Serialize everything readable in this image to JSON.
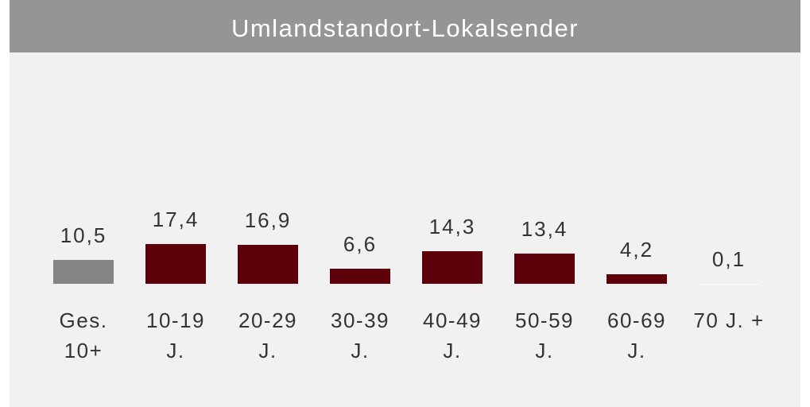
{
  "chart_data": {
    "type": "bar",
    "title": "Umlandstandort-Lokalsender",
    "categories": [
      "Ges.\n10+",
      "10-19\nJ.",
      "20-29\nJ.",
      "30-39\nJ.",
      "40-49\nJ.",
      "50-59\nJ.",
      "60-69\nJ.",
      "70 J. +"
    ],
    "values": [
      10.5,
      17.4,
      16.9,
      6.6,
      14.3,
      13.4,
      4.2,
      0.1
    ],
    "value_labels": [
      "10,5",
      "17,4",
      "16,9",
      "6,6",
      "14,3",
      "13,4",
      "4,2",
      "0,1"
    ],
    "colors": [
      "#858585",
      "#5e0009",
      "#5e0009",
      "#5e0009",
      "#5e0009",
      "#5e0009",
      "#5e0009",
      "#ffffff"
    ]
  }
}
